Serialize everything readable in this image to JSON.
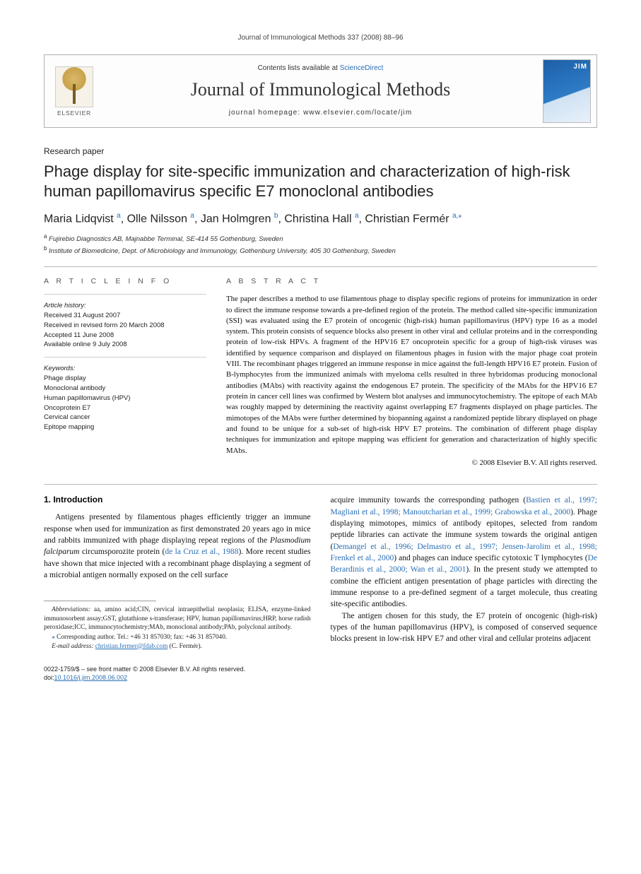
{
  "running_head": "Journal of Immunological Methods 337 (2008) 88–96",
  "masthead": {
    "elsevier_label": "ELSEVIER",
    "contents_prefix": "Contents lists available at ",
    "contents_link": "ScienceDirect",
    "journal_name": "Journal of Immunological Methods",
    "homepage_label": "journal homepage: www.elsevier.com/locate/jim",
    "cover_abbrev": "JIM"
  },
  "article": {
    "type": "Research paper",
    "title": "Phage display for site-specific immunization and characterization of high-risk human papillomavirus specific E7 monoclonal antibodies",
    "authors_html": "Maria Lidqvist <sup class=\"aff-a\">a</sup>, Olle Nilsson <sup class=\"aff-a\">a</sup>, Jan Holmgren <sup class=\"aff-b\">b</sup>, Christina Hall <sup class=\"aff-a\">a</sup>, Christian Fermér <sup class=\"aff-a\">a,</sup><sup class=\"star\">⁎</sup>",
    "affiliations": [
      {
        "marker": "a",
        "text": "Fujirebio Diagnostics AB, Majnabbe Terminal, SE-414 55 Gothenburg, Sweden"
      },
      {
        "marker": "b",
        "text": "Institute of Biomedicine, Dept. of Microbiology and Immunology, Gothenburg University, 405 30 Gothenburg, Sweden"
      }
    ]
  },
  "article_info": {
    "heading": "A R T I C L E   I N F O",
    "history_label": "Article history:",
    "history": [
      "Received 31 August 2007",
      "Received in revised form 20 March 2008",
      "Accepted 11 June 2008",
      "Available online 9 July 2008"
    ],
    "keywords_label": "Keywords:",
    "keywords": [
      "Phage display",
      "Monoclonal antibody",
      "Human papillomavirus (HPV)",
      "Oncoprotein E7",
      "Cervical cancer",
      "Epitope mapping"
    ]
  },
  "abstract": {
    "heading": "A B S T R A C T",
    "text": "The paper describes a method to use filamentous phage to display specific regions of proteins for immunization in order to direct the immune response towards a pre-defined region of the protein. The method called site-specific immunization (SSI) was evaluated using the E7 protein of oncogenic (high-risk) human papillomavirus (HPV) type 16 as a model system. This protein consists of sequence blocks also present in other viral and cellular proteins and in the corresponding protein of low-risk HPVs. A fragment of the HPV16 E7 oncoprotein specific for a group of high-risk viruses was identified by sequence comparison and displayed on filamentous phages in fusion with the major phage coat protein VIII. The recombinant phages triggered an immune response in mice against the full-length HPV16 E7 protein. Fusion of B-lymphocytes from the immunized animals with myeloma cells resulted in three hybridomas producing monoclonal antibodies (MAbs) with reactivity against the endogenous E7 protein. The specificity of the MAbs for the HPV16 E7 protein in cancer cell lines was confirmed by Western blot analyses and immunocytochemistry. The epitope of each MAb was roughly mapped by determining the reactivity against overlapping E7 fragments displayed on phage particles. The mimotopes of the MAbs were further determined by biopanning against a randomized peptide library displayed on phage and found to be unique for a sub-set of high-risk HPV E7 proteins. The combination of different phage display techniques for immunization and epitope mapping was efficient for generation and characterization of highly specific MAbs.",
    "copyright": "© 2008 Elsevier B.V. All rights reserved."
  },
  "section1": {
    "heading": "1. Introduction",
    "para_left": "Antigens presented by filamentous phages efficiently trigger an immune response when used for immunization as first demonstrated 20 years ago in mice and rabbits immunized with phage displaying repeat regions of the <span class=\"italic\">Plasmodium falciparum</span> circumsporozite protein (<span class=\"ref-link\">de la Cruz et al., 1988</span>). More recent studies have shown that mice injected with a recombinant phage displaying a segment of a microbial antigen normally exposed on the cell surface",
    "para_right_1": "acquire immunity towards the corresponding pathogen (<span class=\"ref-link\">Bastien et al., 1997; Magliani et al., 1998; Manoutcharian et al., 1999; Grabowska et al., 2000</span>). Phage displaying mimotopes, mimics of antibody epitopes, selected from random peptide libraries can activate the immune system towards the original antigen (<span class=\"ref-link\">Demangel et al., 1996; Delmastro et al., 1997; Jensen-Jarolim et al., 1998; Frenkel et al., 2000</span>) and phages can induce specific cytotoxic T lymphocytes (<span class=\"ref-link\">De Berardinis et al., 2000; Wan et al., 2001</span>). In the present study we attempted to combine the efficient antigen presentation of phage particles with directing the immune response to a pre-defined segment of a target molecule, thus creating site-specific antibodies.",
    "para_right_2": "The antigen chosen for this study, the E7 protein of oncogenic (high-risk) types of the human papillomavirus (HPV), is composed of conserved sequence blocks present in low-risk HPV E7 and other viral and cellular proteins adjacent"
  },
  "footnotes": {
    "abbrev_label": "Abbreviations:",
    "abbrev_text": " aa, amino acid;CIN, cervical intraepithelial neoplasia; ELISA, enzyme-linked immunosorbent assay;GST, glutathione s-transferase; HPV, human papillomavirus;HRP, horse radish peroxidase;ICC, immunocytochemistry;MAb, monoclonal antibody;PAb, polyclonal antibody.",
    "corr_marker": "⁎",
    "corr_text": " Corresponding author. Tel.: +46 31 857030; fax: +46 31 857040.",
    "email_label": "E-mail address:",
    "email": "christian.fermer@fdab.com",
    "email_attr": " (C. Fermér)."
  },
  "footer": {
    "line1": "0022-1759/$ – see front matter © 2008 Elsevier B.V. All rights reserved.",
    "doi_prefix": "doi:",
    "doi": "10.1016/j.jim.2008.06.002"
  },
  "colors": {
    "link": "#2a6fb5",
    "rule": "#b8b8b8",
    "text": "#111111"
  }
}
